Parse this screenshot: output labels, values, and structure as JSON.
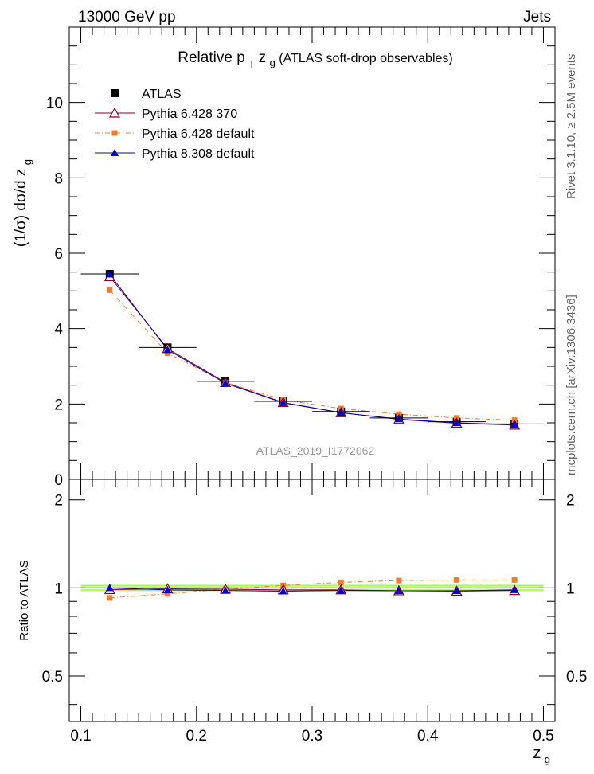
{
  "header": {
    "left": "13000 GeV pp",
    "right": "Jets"
  },
  "side_labels": {
    "rivet": "Rivet 3.1.10, ≥ 2.5M events",
    "mcplots": "mcplots.cern.ch [arXiv:1306.3436]"
  },
  "watermark": "ATLAS_2019_I1772062",
  "colors": {
    "atlas": "#000000",
    "p6_370": "#8b0022",
    "p6_def": "#f07d2a",
    "p8_def": "#0000cc",
    "band_inner": "#ffff66",
    "band_outer": "#99ff66"
  },
  "chart_data": [
    {
      "type": "line",
      "title": {
        "prefix": "Relative p",
        "sub_t": "T",
        "mid": " z",
        "sub_g": "g",
        "suffix": " (ATLAS soft-drop observables)"
      },
      "ylabel": {
        "main": "(1/σ) dσ/d z",
        "sub": "g"
      },
      "xlim": [
        0.09,
        0.51
      ],
      "ylim": [
        0,
        12
      ],
      "y_ticks": [
        0,
        2,
        4,
        6,
        8,
        10
      ],
      "y_tick_labels": [
        "0",
        "2",
        "4",
        "6",
        "8",
        "10"
      ],
      "legend_position": "top-left",
      "x": [
        0.125,
        0.175,
        0.225,
        0.275,
        0.325,
        0.375,
        0.425,
        0.475
      ],
      "series": [
        {
          "key": "atlas",
          "name": "ATLAS",
          "marker": "square",
          "values": [
            5.45,
            3.5,
            2.6,
            2.07,
            1.8,
            1.63,
            1.53,
            1.47
          ]
        },
        {
          "key": "p6_370",
          "name": "Pythia 6.428 370",
          "marker": "triangle-open",
          "values": [
            5.38,
            3.47,
            2.57,
            2.04,
            1.77,
            1.59,
            1.49,
            1.44
          ]
        },
        {
          "key": "p6_def",
          "name": "Pythia 6.428 default",
          "marker": "square-small",
          "values": [
            5.02,
            3.35,
            2.57,
            2.11,
            1.88,
            1.73,
            1.63,
            1.57
          ]
        },
        {
          "key": "p8_def",
          "name": "Pythia 8.308 default",
          "marker": "triangle-filled",
          "values": [
            5.44,
            3.44,
            2.55,
            2.03,
            1.77,
            1.6,
            1.5,
            1.45
          ]
        }
      ]
    },
    {
      "type": "line",
      "ylabel": "Ratio to ATLAS",
      "xlabel": {
        "main": "z",
        "sub": "g"
      },
      "xlim": [
        0.09,
        0.51
      ],
      "ylim": [
        0.35,
        2.35
      ],
      "x_ticks": [
        0.1,
        0.2,
        0.3,
        0.4,
        0.5
      ],
      "x_tick_labels": [
        "0.1",
        "0.2",
        "0.3",
        "0.4",
        "0.5"
      ],
      "y_ticks": [
        0.5,
        1,
        2
      ],
      "y_tick_labels": [
        "0.5",
        "1",
        "2"
      ],
      "reference": 1,
      "band_inner": 0.012,
      "band_outer": 0.025,
      "x": [
        0.125,
        0.175,
        0.225,
        0.275,
        0.325,
        0.375,
        0.425,
        0.475
      ],
      "series": [
        {
          "key": "p6_370",
          "name": "Pythia 6.428 370",
          "marker": "triangle-open",
          "values": [
            0.987,
            0.993,
            0.99,
            0.985,
            0.985,
            0.978,
            0.975,
            0.98
          ]
        },
        {
          "key": "p6_def",
          "name": "Pythia 6.428 default",
          "marker": "square-small",
          "values": [
            0.925,
            0.955,
            0.99,
            1.02,
            1.045,
            1.06,
            1.065,
            1.065
          ]
        },
        {
          "key": "p8_def",
          "name": "Pythia 8.308 default",
          "marker": "triangle-filled",
          "values": [
            1.0,
            0.985,
            0.98,
            0.975,
            0.98,
            0.978,
            0.978,
            0.985
          ]
        }
      ]
    }
  ]
}
